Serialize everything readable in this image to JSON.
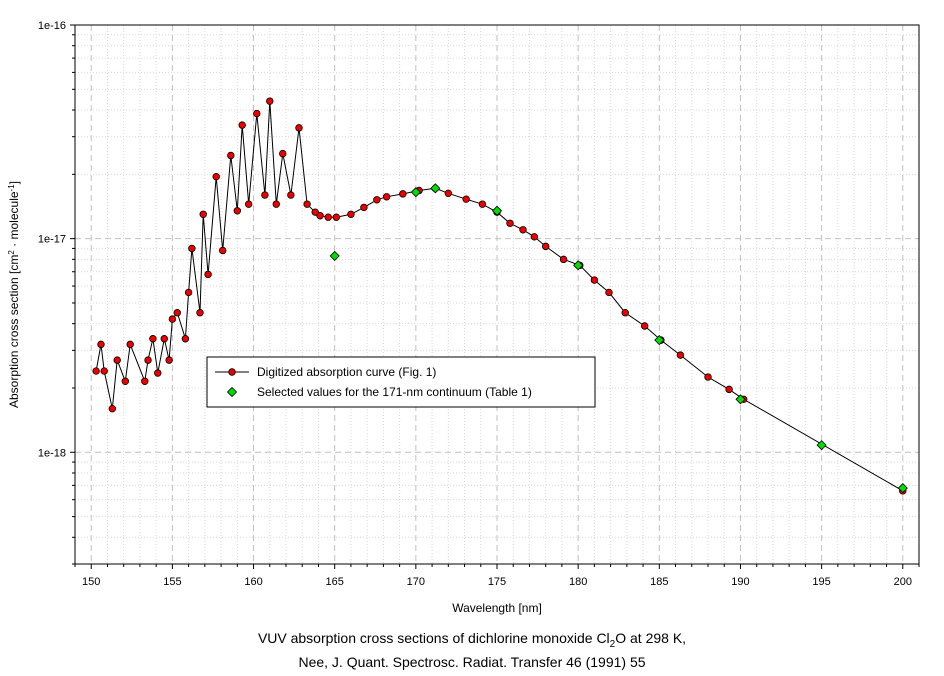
{
  "chart_data": {
    "type": "scatter",
    "xlabel": "Wavelength [nm]",
    "ylabel_parts": [
      "Absorption cross section [cm",
      "2",
      " · molecule",
      "-1",
      "]"
    ],
    "xlim": [
      149,
      201
    ],
    "ylim": [
      3e-19,
      1e-16
    ],
    "yscale": "log",
    "grid": true,
    "legend_position": "center-left",
    "x_ticks": [
      150,
      155,
      160,
      165,
      170,
      175,
      180,
      185,
      190,
      195,
      200
    ],
    "y_ticks": [
      {
        "value": 1e-18,
        "label": "1e-18"
      },
      {
        "value": 1e-17,
        "label": "1e-17"
      },
      {
        "value": 1e-16,
        "label": "1e-16"
      }
    ],
    "series": [
      {
        "name": "Digitized absorption curve (Fig. 1)",
        "color": "#ee0000",
        "marker": "circle",
        "line": "straight",
        "x": [
          150.3,
          150.6,
          150.8,
          151.3,
          151.6,
          152.1,
          152.4,
          153.3,
          153.5,
          153.8,
          154.1,
          154.5,
          154.8,
          155.0,
          155.3,
          155.8,
          156.0,
          156.2,
          156.7,
          156.9,
          157.2,
          157.7,
          158.1,
          158.6,
          159.0,
          159.3,
          159.7,
          160.2,
          160.7,
          161.0,
          161.4,
          161.8,
          162.3,
          162.8,
          163.3,
          163.8,
          164.1,
          164.6,
          165.1,
          166.0,
          166.8,
          167.6,
          168.2,
          169.2,
          170.2,
          171.2,
          172.0,
          173.1,
          174.1,
          175.0,
          175.8,
          176.6,
          177.3,
          178.0,
          179.1,
          180.1,
          181.0,
          181.9,
          182.9,
          184.1,
          185.1,
          186.3,
          188.0,
          189.3,
          190.2,
          200.0
        ],
        "y": [
          2.4e-18,
          3.2e-18,
          2.4e-18,
          1.6e-18,
          2.7e-18,
          2.15e-18,
          3.2e-18,
          2.15e-18,
          2.7e-18,
          3.4e-18,
          2.35e-18,
          3.4e-18,
          2.7e-18,
          4.2e-18,
          4.5e-18,
          3.4e-18,
          5.6e-18,
          9e-18,
          4.5e-18,
          1.3e-17,
          6.8e-18,
          1.95e-17,
          8.8e-18,
          2.45e-17,
          1.35e-17,
          3.4e-17,
          1.45e-17,
          3.85e-17,
          1.6e-17,
          4.4e-17,
          1.45e-17,
          2.5e-17,
          1.6e-17,
          3.3e-17,
          1.45e-17,
          1.33e-17,
          1.28e-17,
          1.26e-17,
          1.26e-17,
          1.3e-17,
          1.4e-17,
          1.52e-17,
          1.57e-17,
          1.62e-17,
          1.68e-17,
          1.72e-17,
          1.63e-17,
          1.53e-17,
          1.45e-17,
          1.33e-17,
          1.18e-17,
          1.1e-17,
          1.02e-17,
          9.2e-18,
          8e-18,
          7.5e-18,
          6.4e-18,
          5.6e-18,
          4.5e-18,
          3.9e-18,
          3.35e-18,
          2.85e-18,
          2.25e-18,
          1.97e-18,
          1.77e-18,
          6.6e-19
        ]
      },
      {
        "name": "Selected values for the 171-nm continuum (Table 1)",
        "color": "#00dd00",
        "marker": "diamond",
        "line": "none",
        "x": [
          165,
          170,
          171.2,
          175,
          180,
          185,
          190,
          195,
          200
        ],
        "y": [
          8.3e-18,
          1.65e-17,
          1.72e-17,
          1.35e-17,
          7.5e-18,
          3.35e-18,
          1.77e-18,
          1.08e-18,
          6.8e-19
        ]
      }
    ]
  },
  "caption": {
    "line1_before_sub": "VUV absorption cross sections of dichlorine monoxide Cl",
    "line1_sub": "2",
    "line1_after_sub": "O at 298 K,",
    "line2": "Nee, J. Quant. Spectrosc. Radiat. Transfer 46 (1991) 55"
  }
}
